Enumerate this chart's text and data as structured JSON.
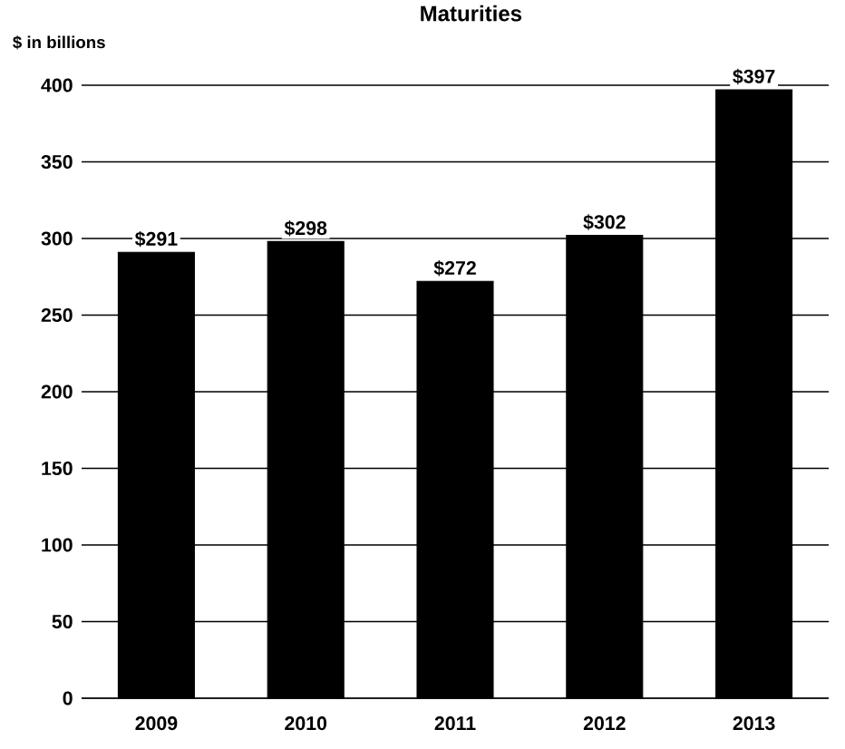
{
  "chart_data": {
    "type": "bar",
    "title": "Maturities",
    "ylabel": "$ in billions",
    "categories": [
      "2009",
      "2010",
      "2011",
      "2012",
      "2013"
    ],
    "values": [
      291,
      298,
      272,
      302,
      397
    ],
    "value_labels": [
      "$291",
      "$298",
      "$272",
      "$302",
      "$397"
    ],
    "color": "#000000",
    "ylim": [
      0,
      400
    ],
    "yticks": [
      0,
      50,
      100,
      150,
      200,
      250,
      300,
      350,
      400
    ],
    "grid": "y"
  }
}
